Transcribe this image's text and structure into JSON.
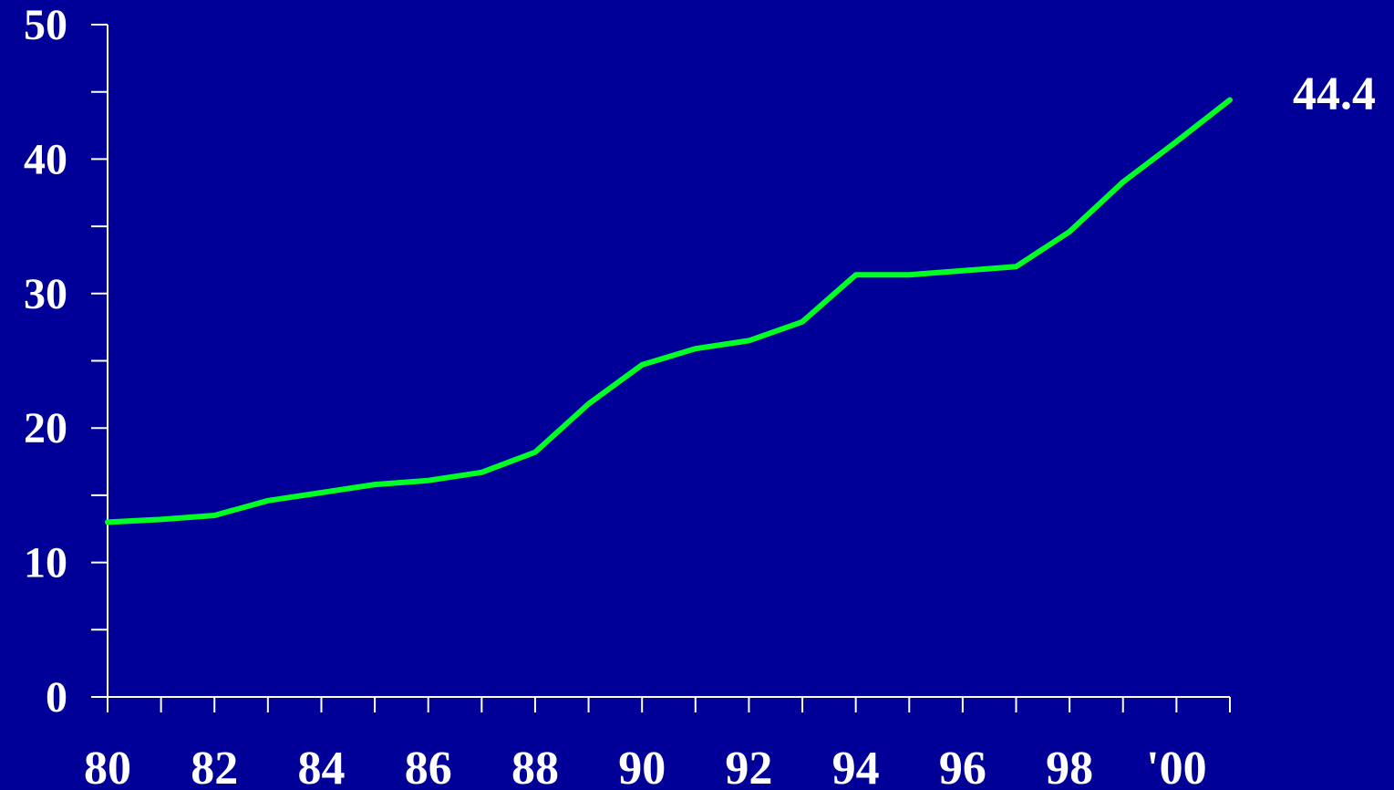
{
  "chart_data": {
    "type": "line",
    "title": "",
    "xlabel": "",
    "ylabel": "",
    "xlim": [
      1980,
      2001
    ],
    "ylim": [
      0,
      50
    ],
    "y_ticks": [
      0,
      10,
      20,
      30,
      40,
      50
    ],
    "y_tick_labels": [
      "0",
      "10",
      "20",
      "30",
      "40",
      "50"
    ],
    "y_minor_ticks": [
      5,
      15,
      25,
      35,
      45
    ],
    "x_ticks": [
      1980,
      1981,
      1982,
      1983,
      1984,
      1985,
      1986,
      1987,
      1988,
      1989,
      1990,
      1991,
      1992,
      1993,
      1994,
      1995,
      1996,
      1997,
      1998,
      1999,
      2000,
      2001
    ],
    "x_labeled_ticks": [
      1980,
      1982,
      1984,
      1986,
      1988,
      1990,
      1992,
      1994,
      1996,
      1998,
      2000
    ],
    "x_tick_labels": [
      "80",
      "82",
      "84",
      "86",
      "88",
      "90",
      "92",
      "94",
      "96",
      "98",
      "'00"
    ],
    "grid": false,
    "legend": "none",
    "colors": {
      "background": "#000099",
      "axis": "#ffffff",
      "text": "#ffffff",
      "series": "#00ff22"
    },
    "series": [
      {
        "x": [
          1980,
          1981,
          1982,
          1983,
          1984,
          1985,
          1986,
          1987,
          1988,
          1989,
          1990,
          1991,
          1992,
          1993,
          1994,
          1995,
          1996,
          1997,
          1998,
          1999,
          2000,
          2001
        ],
        "values": [
          13.0,
          13.2,
          13.5,
          14.6,
          15.2,
          15.8,
          16.1,
          16.7,
          18.2,
          21.8,
          24.7,
          25.9,
          26.5,
          27.9,
          31.4,
          31.4,
          31.7,
          32.0,
          34.6,
          38.3,
          41.3,
          44.4
        ]
      }
    ],
    "annotations": [
      {
        "text": "44.4",
        "x": 2001,
        "y": 44.4
      }
    ]
  }
}
